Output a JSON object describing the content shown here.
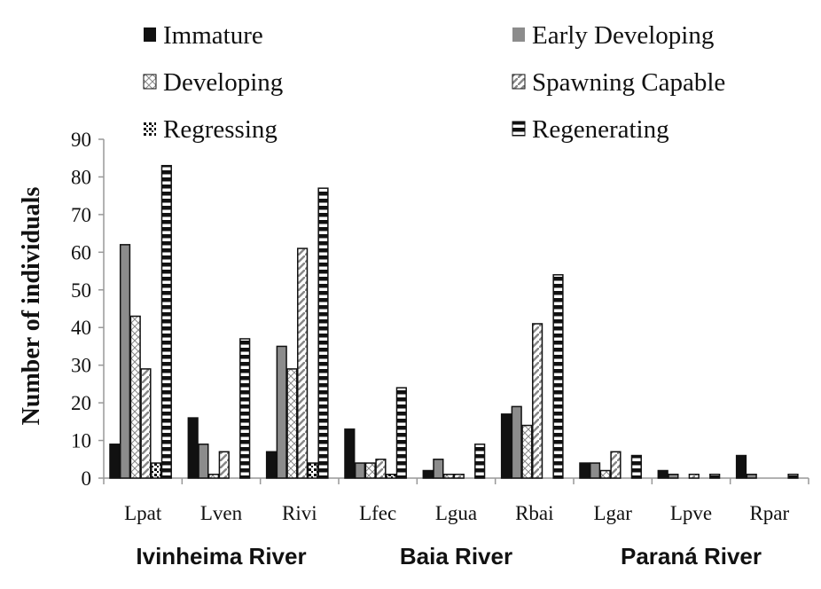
{
  "chart_data": {
    "type": "bar",
    "ylabel": "Number of individuals",
    "ylim": [
      0,
      90
    ],
    "yticks": [
      0,
      10,
      20,
      30,
      40,
      50,
      60,
      70,
      80,
      90
    ],
    "grid": false,
    "legend_placement": "top",
    "categories": [
      "Lpat",
      "Lven",
      "Rivi",
      "Lfec",
      "Lgua",
      "Rbai",
      "Lgar",
      "Lpve",
      "Rpar"
    ],
    "groups": [
      {
        "label": "Ivinheima River",
        "categories": [
          "Lpat",
          "Lven",
          "Rivi"
        ]
      },
      {
        "label": "Baia River",
        "categories": [
          "Lfec",
          "Lgua",
          "Rbai"
        ]
      },
      {
        "label": "Paraná River",
        "categories": [
          "Lgar",
          "Lpve",
          "Rpar"
        ]
      }
    ],
    "series": [
      {
        "name": "Immature",
        "pattern": "solid-black",
        "values": [
          9,
          16,
          7,
          13,
          2,
          17,
          4,
          2,
          6
        ]
      },
      {
        "name": "Early Developing",
        "pattern": "solid-gray",
        "values": [
          62,
          9,
          35,
          4,
          5,
          19,
          4,
          1,
          1
        ]
      },
      {
        "name": "Developing",
        "pattern": "crosshatch",
        "values": [
          43,
          1,
          29,
          4,
          1,
          14,
          2,
          0,
          0
        ]
      },
      {
        "name": "Spawning Capable",
        "pattern": "diagonal",
        "values": [
          29,
          7,
          61,
          5,
          1,
          41,
          7,
          1,
          0
        ]
      },
      {
        "name": "Regressing",
        "pattern": "dots",
        "values": [
          4,
          0,
          4,
          1,
          0,
          0,
          0,
          0,
          0
        ]
      },
      {
        "name": "Regenerating",
        "pattern": "horizontal-stripes",
        "values": [
          83,
          37,
          77,
          24,
          9,
          54,
          6,
          1,
          1
        ]
      }
    ]
  }
}
